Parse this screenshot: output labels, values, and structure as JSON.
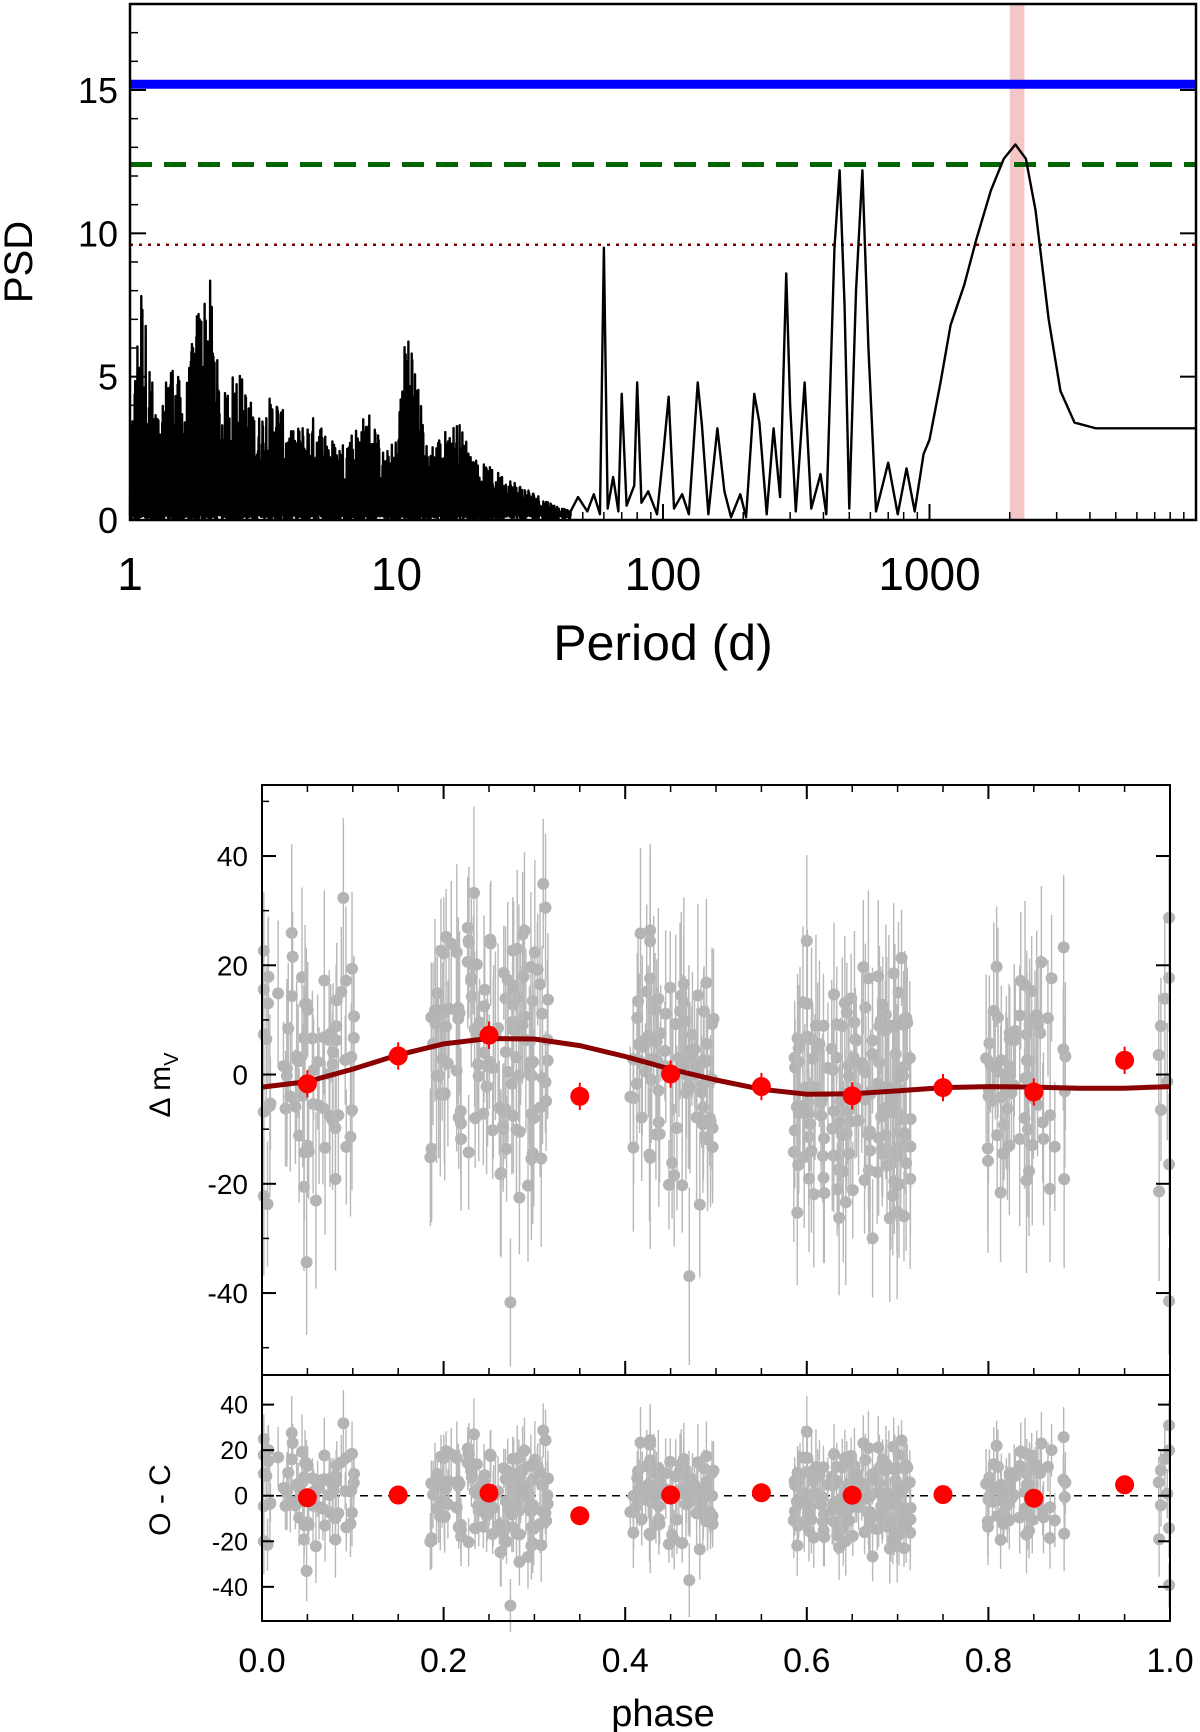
{
  "chart_data": [
    {
      "type": "line",
      "xlabel": "Period (d)",
      "ylabel": "PSD",
      "xscale": "log",
      "xlim": [
        1,
        10000
      ],
      "ylim": [
        0,
        18
      ],
      "xticks": [
        {
          "value": 1,
          "label": "1"
        },
        {
          "value": 10,
          "label": "10"
        },
        {
          "value": 100,
          "label": "100"
        },
        {
          "value": 1000,
          "label": "1000"
        }
      ],
      "yticks": [
        {
          "value": 0,
          "label": "0"
        },
        {
          "value": 5,
          "label": "5"
        },
        {
          "value": 10,
          "label": "10"
        },
        {
          "value": 15,
          "label": "15"
        }
      ],
      "reference_lines": [
        {
          "y": 15.2,
          "style": "solid",
          "color": "#0000ff"
        },
        {
          "y": 12.4,
          "style": "dashed",
          "color": "#006400"
        },
        {
          "y": 9.6,
          "style": "dotted",
          "color": "#800000"
        }
      ],
      "highlight_band": {
        "x": [
          2000,
          2270
        ],
        "color": "#f5c6c6"
      },
      "periodogram_points": [
        [
          1,
          2.5
        ],
        [
          1.1,
          8.6
        ],
        [
          1.2,
          5.2
        ],
        [
          1.3,
          3.2
        ],
        [
          1.4,
          6.0
        ],
        [
          1.6,
          4.4
        ],
        [
          1.8,
          7.6
        ],
        [
          2.0,
          8.4
        ],
        [
          2.2,
          4.1
        ],
        [
          2.5,
          5.6
        ],
        [
          3.0,
          3.6
        ],
        [
          3.5,
          4.6
        ],
        [
          4.0,
          3.1
        ],
        [
          5.0,
          3.7
        ],
        [
          6.0,
          2.6
        ],
        [
          7.0,
          3.3
        ],
        [
          8.0,
          3.9
        ],
        [
          9.0,
          2.3
        ],
        [
          10,
          2.9
        ],
        [
          11,
          7.5
        ],
        [
          13,
          2.6
        ],
        [
          15,
          3.1
        ],
        [
          17,
          3.5
        ],
        [
          20,
          2.1
        ],
        [
          25,
          1.6
        ],
        [
          30,
          1.2
        ],
        [
          35,
          0.8
        ],
        [
          40,
          0.5
        ],
        [
          45,
          0.3
        ],
        [
          48,
          0.8
        ],
        [
          52,
          0.3
        ],
        [
          55,
          0.9
        ],
        [
          58,
          0.2
        ],
        [
          60,
          9.5
        ],
        [
          62,
          0.4
        ],
        [
          65,
          1.5
        ],
        [
          68,
          0.3
        ],
        [
          70,
          4.4
        ],
        [
          73,
          0.5
        ],
        [
          78,
          1.2
        ],
        [
          80,
          4.8
        ],
        [
          83,
          0.6
        ],
        [
          88,
          1.0
        ],
        [
          95,
          0.2
        ],
        [
          100,
          2.2
        ],
        [
          105,
          4.3
        ],
        [
          110,
          0.4
        ],
        [
          118,
          0.9
        ],
        [
          125,
          0.2
        ],
        [
          130,
          2.5
        ],
        [
          135,
          4.8
        ],
        [
          140,
          3.3
        ],
        [
          148,
          0.2
        ],
        [
          160,
          3.2
        ],
        [
          170,
          1.0
        ],
        [
          180,
          0.1
        ],
        [
          195,
          0.9
        ],
        [
          205,
          0.1
        ],
        [
          220,
          4.4
        ],
        [
          230,
          3.4
        ],
        [
          245,
          0.2
        ],
        [
          260,
          3.2
        ],
        [
          275,
          0.8
        ],
        [
          290,
          8.6
        ],
        [
          300,
          4.0
        ],
        [
          315,
          0.3
        ],
        [
          340,
          4.8
        ],
        [
          360,
          0.4
        ],
        [
          390,
          1.6
        ],
        [
          410,
          0.2
        ],
        [
          440,
          9.5
        ],
        [
          460,
          12.2
        ],
        [
          480,
          7.5
        ],
        [
          500,
          0.4
        ],
        [
          530,
          8.0
        ],
        [
          560,
          12.2
        ],
        [
          590,
          6.0
        ],
        [
          630,
          0.3
        ],
        [
          700,
          2.0
        ],
        [
          760,
          0.2
        ],
        [
          820,
          1.8
        ],
        [
          880,
          0.3
        ],
        [
          950,
          2.3
        ],
        [
          1000,
          2.8
        ],
        [
          1100,
          4.8
        ],
        [
          1200,
          6.8
        ],
        [
          1350,
          8.2
        ],
        [
          1500,
          9.8
        ],
        [
          1700,
          11.5
        ],
        [
          1900,
          12.6
        ],
        [
          2100,
          13.1
        ],
        [
          2300,
          12.6
        ],
        [
          2500,
          10.8
        ],
        [
          2800,
          7.0
        ],
        [
          3100,
          4.5
        ],
        [
          3500,
          3.4
        ],
        [
          4200,
          3.2
        ],
        [
          5500,
          3.2
        ],
        [
          10000,
          3.2
        ]
      ]
    },
    {
      "type": "scatter",
      "xlabel": "phase",
      "ylabel": "Δ m",
      "ylabel_sub": "V",
      "xlim": [
        0,
        1
      ],
      "ylim": [
        -55,
        53
      ],
      "yticks": [
        {
          "value": -40,
          "label": "-40"
        },
        {
          "value": -20,
          "label": "-20"
        },
        {
          "value": 0,
          "label": "0"
        },
        {
          "value": 20,
          "label": "20"
        },
        {
          "value": 40,
          "label": "40"
        }
      ],
      "binned_points": [
        {
          "x": 0.05,
          "y": -1.7
        },
        {
          "x": 0.15,
          "y": 3.4
        },
        {
          "x": 0.25,
          "y": 7.2
        },
        {
          "x": 0.35,
          "y": -4.0
        },
        {
          "x": 0.45,
          "y": 0.1
        },
        {
          "x": 0.55,
          "y": -2.2
        },
        {
          "x": 0.65,
          "y": -3.9
        },
        {
          "x": 0.75,
          "y": -2.4
        },
        {
          "x": 0.85,
          "y": -3.2
        },
        {
          "x": 0.95,
          "y": 2.6
        }
      ],
      "model_curve": [
        [
          0.0,
          -2.3
        ],
        [
          0.05,
          -1.3
        ],
        [
          0.1,
          1.0
        ],
        [
          0.15,
          3.6
        ],
        [
          0.2,
          5.6
        ],
        [
          0.25,
          6.6
        ],
        [
          0.3,
          6.5
        ],
        [
          0.35,
          5.3
        ],
        [
          0.4,
          3.3
        ],
        [
          0.45,
          1.0
        ],
        [
          0.5,
          -1.0
        ],
        [
          0.55,
          -2.7
        ],
        [
          0.6,
          -3.6
        ],
        [
          0.65,
          -3.5
        ],
        [
          0.7,
          -3.0
        ],
        [
          0.75,
          -2.4
        ],
        [
          0.8,
          -2.2
        ],
        [
          0.85,
          -2.3
        ],
        [
          0.9,
          -2.5
        ],
        [
          0.95,
          -2.5
        ],
        [
          1.0,
          -2.2
        ]
      ],
      "scatter_clusters": [
        {
          "center": 0.05,
          "width": 0.055,
          "count": 70,
          "sd": 13
        },
        {
          "center": 0.25,
          "width": 0.065,
          "count": 130,
          "sd": 12
        },
        {
          "center": 0.45,
          "width": 0.05,
          "count": 90,
          "sd": 13
        },
        {
          "center": 0.65,
          "width": 0.065,
          "count": 160,
          "sd": 12
        },
        {
          "center": 0.84,
          "width": 0.045,
          "count": 70,
          "sd": 12
        },
        {
          "center": 0.995,
          "width": 0.008,
          "count": 10,
          "sd": 15
        }
      ]
    },
    {
      "type": "scatter",
      "xlabel": "phase",
      "ylabel": "O - C",
      "xlim": [
        0,
        1
      ],
      "ylim": [
        -55,
        53
      ],
      "xticks": [
        {
          "value": 0.0,
          "label": "0.0"
        },
        {
          "value": 0.2,
          "label": "0.2"
        },
        {
          "value": 0.4,
          "label": "0.4"
        },
        {
          "value": 0.6,
          "label": "0.6"
        },
        {
          "value": 0.8,
          "label": "0.8"
        },
        {
          "value": 1.0,
          "label": "1.0"
        }
      ],
      "yticks": [
        {
          "value": -40,
          "label": "-40"
        },
        {
          "value": -20,
          "label": "-20"
        },
        {
          "value": 0,
          "label": "0"
        },
        {
          "value": 20,
          "label": "20"
        },
        {
          "value": 40,
          "label": "40"
        }
      ],
      "binned_points": [
        {
          "x": 0.05,
          "y": -0.9
        },
        {
          "x": 0.15,
          "y": 0.3
        },
        {
          "x": 0.25,
          "y": 1.2
        },
        {
          "x": 0.35,
          "y": -8.8
        },
        {
          "x": 0.45,
          "y": 0.3
        },
        {
          "x": 0.55,
          "y": 1.3
        },
        {
          "x": 0.65,
          "y": 0.2
        },
        {
          "x": 0.75,
          "y": 0.5
        },
        {
          "x": 0.85,
          "y": -1.1
        },
        {
          "x": 0.95,
          "y": 4.8
        }
      ]
    }
  ]
}
